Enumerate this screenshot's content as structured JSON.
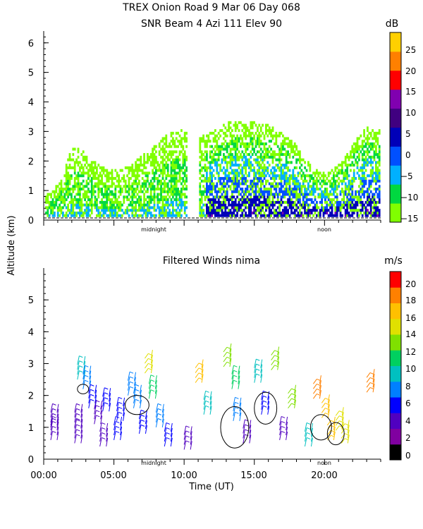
{
  "figure": {
    "title_line1": "TREX Onion Road   9 Mar 06 Day 068",
    "title_line2": "SNR Beam 4 Azi 111 Elev 90",
    "ylabel": "Altitude (km)",
    "xlabel": "Time (UT)",
    "markers": [
      "midnight",
      "noon"
    ]
  },
  "chart_data": [
    {
      "type": "heatmap",
      "title": "SNR Beam 4 Azi 111 Elev 90",
      "ylim": [
        0,
        6.4
      ],
      "yticks": [
        "0",
        "1",
        "2",
        "3",
        "4",
        "5",
        "6"
      ],
      "x_range_ut": [
        0,
        24
      ],
      "colorbar": {
        "unit": "dB",
        "ticks": [
          "25",
          "20",
          "15",
          "10",
          "5",
          "0",
          "−5",
          "−10",
          "−15"
        ],
        "range": [
          -15,
          30
        ],
        "colors": [
          "#80ff00",
          "#00d840",
          "#00b0ff",
          "#0050ff",
          "#0000b8",
          "#400080",
          "#8000b0",
          "#ff0000",
          "#ff8000",
          "#ffd000"
        ]
      },
      "echo_layer_top_km": [
        [
          0,
          0.9
        ],
        [
          1,
          1.2
        ],
        [
          2,
          2.5
        ],
        [
          3,
          2.3
        ],
        [
          4,
          1.8
        ],
        [
          5,
          1.7
        ],
        [
          6,
          1.8
        ],
        [
          7,
          2.2
        ],
        [
          8,
          2.6
        ],
        [
          9,
          3.0
        ],
        [
          10,
          3.2
        ],
        [
          11,
          2.8
        ],
        [
          12,
          3.0
        ],
        [
          13,
          3.3
        ],
        [
          14,
          3.3
        ],
        [
          15,
          3.3
        ],
        [
          16,
          3.2
        ],
        [
          17,
          3.0
        ],
        [
          18,
          2.5
        ],
        [
          19,
          1.8
        ],
        [
          20,
          1.6
        ],
        [
          21,
          1.9
        ],
        [
          22,
          2.6
        ],
        [
          23,
          3.2
        ],
        [
          24,
          3.0
        ]
      ]
    },
    {
      "type": "wind_barbs",
      "title": "Filtered Winds nima",
      "ylim": [
        0,
        6
      ],
      "yticks": [
        "0",
        "1",
        "2",
        "3",
        "4",
        "5"
      ],
      "xlim": [
        0,
        24
      ],
      "xticks": [
        "00:00",
        "05:00",
        "10:00",
        "15:00",
        "20:00"
      ],
      "colorbar": {
        "unit": "m/s",
        "ticks": [
          "20",
          "18",
          "16",
          "14",
          "12",
          "10",
          "8",
          "6",
          "4",
          "2",
          "0"
        ],
        "range": [
          0,
          22
        ],
        "colors": [
          "#000000",
          "#8000a0",
          "#5000c0",
          "#0000ff",
          "#0080ff",
          "#00c0c0",
          "#00d060",
          "#80e000",
          "#e0e000",
          "#ffc000",
          "#ff8000",
          "#ff0000"
        ]
      },
      "wind_speed_ms": [
        [
          0.5,
          0.6,
          4
        ],
        [
          0.5,
          1.0,
          3
        ],
        [
          2.2,
          0.5,
          3
        ],
        [
          2.2,
          1.0,
          3
        ],
        [
          2.4,
          2.5,
          9
        ],
        [
          2.8,
          2.2,
          7
        ],
        [
          3.2,
          1.6,
          5
        ],
        [
          3.6,
          1.1,
          4
        ],
        [
          4.0,
          0.4,
          3
        ],
        [
          4.2,
          1.5,
          6
        ],
        [
          5.0,
          0.6,
          5
        ],
        [
          5.2,
          1.2,
          6
        ],
        [
          6.0,
          2.0,
          8
        ],
        [
          6.4,
          1.6,
          7
        ],
        [
          6.8,
          0.8,
          6
        ],
        [
          7.2,
          2.7,
          15
        ],
        [
          7.5,
          1.9,
          12
        ],
        [
          8.0,
          1.0,
          7
        ],
        [
          8.6,
          0.4,
          5
        ],
        [
          10.0,
          0.3,
          4
        ],
        [
          10.8,
          2.4,
          17
        ],
        [
          11.4,
          1.4,
          9
        ],
        [
          12.8,
          2.9,
          14
        ],
        [
          13.4,
          2.2,
          12
        ],
        [
          13.5,
          1.2,
          8
        ],
        [
          14.2,
          0.5,
          4
        ],
        [
          15.0,
          2.4,
          10
        ],
        [
          15.5,
          1.4,
          6
        ],
        [
          16.2,
          2.8,
          13
        ],
        [
          16.8,
          0.6,
          4
        ],
        [
          17.4,
          1.6,
          14
        ],
        [
          18.6,
          0.4,
          10
        ],
        [
          19.2,
          1.9,
          19
        ],
        [
          19.8,
          1.3,
          18
        ],
        [
          20.2,
          0.6,
          17
        ],
        [
          20.8,
          0.9,
          16
        ],
        [
          21.2,
          0.5,
          16
        ],
        [
          23.0,
          2.1,
          19
        ]
      ]
    }
  ]
}
